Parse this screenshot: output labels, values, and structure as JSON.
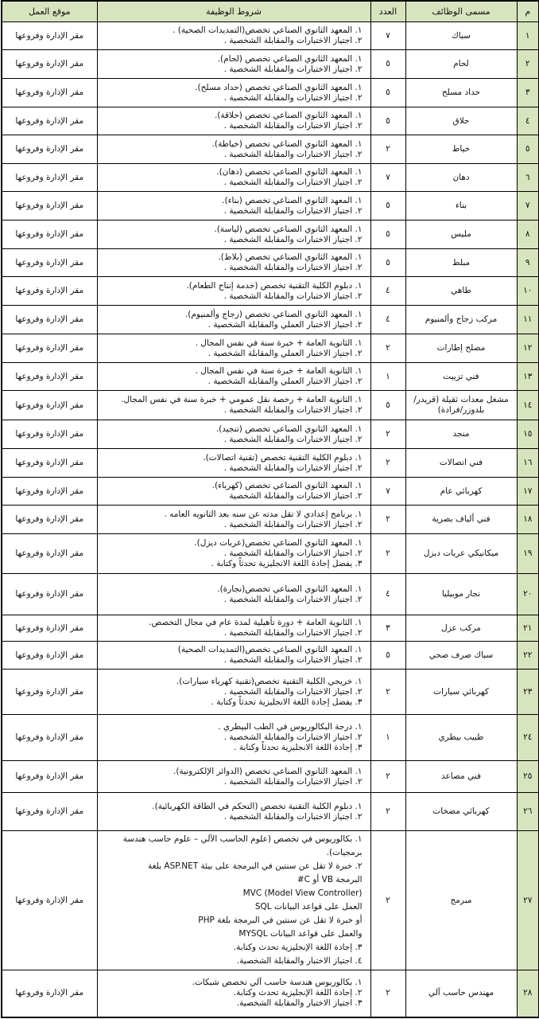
{
  "headers": {
    "num": "م",
    "title": "مسمى الوظائف",
    "count": "العدد",
    "conditions": "شروط الوظيفة",
    "location": "موقع العمل"
  },
  "rows": [
    {
      "num": "١",
      "title": "سباك",
      "count": "٧",
      "conditions": [
        "١. المعهد الثانوي الصناعي تخصص(التمديدات الصحية) .",
        "٢. اجتياز الاختبارات والمقابلة الشخصية ."
      ],
      "location": "مقر الإدارة وفروعها"
    },
    {
      "num": "٢",
      "title": "لحام",
      "count": "٥",
      "conditions": [
        "١. المعهد الثانوي الصناعي تخصص (لحام).",
        "٢. اجتياز الاختبارات والمقابلة الشخصية ."
      ],
      "location": "مقر الإدارة وفروعها"
    },
    {
      "num": "٣",
      "title": "حداد مسلح",
      "count": "٥",
      "conditions": [
        "١. المعهد الثانوي الصناعي تخصص (حداد مسلح).",
        "٢. اجتياز الاختبارات والمقابلة الشخصية ."
      ],
      "location": "مقر الإدارة وفروعها"
    },
    {
      "num": "٤",
      "title": "حلاق",
      "count": "٥",
      "conditions": [
        "١. المعهد الثانوي الصناعي تخصص (حلاقة).",
        "٢. اجتياز الاختبارات والمقابلة الشخصية ."
      ],
      "location": "مقر الإدارة وفروعها"
    },
    {
      "num": "٥",
      "title": "خياط",
      "count": "٢",
      "conditions": [
        "١. المعهد الثانوي الصناعي تخصص (خياطة).",
        "٢. اجتياز الاختبارات والمقابلة الشخصية ."
      ],
      "location": "مقر الإدارة وفروعها"
    },
    {
      "num": "٦",
      "title": "دهان",
      "count": "٧",
      "conditions": [
        "١. المعهد الثانوي الصناعي تخصص (دهان).",
        "٢. اجتياز الاختبارات والمقابلة الشخصية ."
      ],
      "location": "مقر الإدارة وفروعها"
    },
    {
      "num": "٧",
      "title": "بناء",
      "count": "٥",
      "conditions": [
        "١. المعهد الثانوي الصناعي تخصص (بناء).",
        "٢. اجتياز الاختبارات والمقابلة الشخصية ."
      ],
      "location": "مقر الإدارة وفروعها"
    },
    {
      "num": "٨",
      "title": "مليس",
      "count": "٥",
      "conditions": [
        "١. المعهد الثانوي الصناعي تخصص (لياسة).",
        "٢. اجتياز الاختبارات والمقابلة الشخصية ."
      ],
      "location": "مقر الإدارة وفروعها"
    },
    {
      "num": "٩",
      "title": "مبلط",
      "count": "٥",
      "conditions": [
        "١. المعهد الثانوي الصناعي تخصص (بلاط).",
        "٢. اجتياز الاختبارات والمقابلة الشخصية ."
      ],
      "location": "مقر الإدارة وفروعها"
    },
    {
      "num": "١٠",
      "title": "طاهي",
      "count": "٤",
      "conditions": [
        "١. دبلوم الكلية التقنية تخصص (خدمة إنتاج الطعام).",
        "٢. اجتياز الاختبارات والمقابلة الشخصية ."
      ],
      "location": "مقر الإدارة وفروعها"
    },
    {
      "num": "١١",
      "title": "مركب زجاج وألمنيوم",
      "count": "٤",
      "conditions": [
        "١. المعهد الثانوي الصناعي تخصص (زجاج وألمنيوم).",
        "٢. اجتياز الاختبار العملي والمقابلة الشخصية ."
      ],
      "location": "مقر الإدارة وفروعها"
    },
    {
      "num": "١٢",
      "title": "مصلح إطارات",
      "count": "٢",
      "conditions": [
        "١. الثانوية العامة + خبرة سنة في نفس المجال .",
        "٢. اجتياز الاختبار العملي والمقابلة الشخصية ."
      ],
      "location": "مقر الإدارة وفروعها"
    },
    {
      "num": "١٣",
      "title": "فني تزييت",
      "count": "١",
      "conditions": [
        "١. الثانوية العامة + خبرة سنة في نفس المجال .",
        "٢. اجتياز الاختبار العملي والمقابلة الشخصية ."
      ],
      "location": "مقر الإدارة وفروعها"
    },
    {
      "num": "١٤",
      "title": "مشغل معدات ثقيلة (قريدر/بلدوزر/فرادة)",
      "count": "٥",
      "conditions": [
        "١. الثانوية العامة + رخصة نقل عمومي + خبرة سنة في نفس المجال.",
        "٢. اجتياز الاختبارات والمقابلة الشخصية ."
      ],
      "location": "مقر الإدارة وفروعها"
    },
    {
      "num": "١٥",
      "title": "منجد",
      "count": "٢",
      "conditions": [
        "١. المعهد الثانوي الصناعي تخصص (تنجيد).",
        "٢. اجتياز الاختبارات والمقابلة الشخصية ."
      ],
      "location": "مقر الإدارة وفروعها"
    },
    {
      "num": "١٦",
      "title": "فني اتصالات",
      "count": "٢",
      "conditions": [
        "١. دبلوم الكلية التقنية تخصص (تقنية اتصالات).",
        "٢. اجتياز الاختبارات والمقابلة الشخصية ."
      ],
      "location": "مقر الإدارة وفروعها"
    },
    {
      "num": "١٧",
      "title": "كهربائي عام",
      "count": "٧",
      "conditions": [
        "١. المعهد الثانوي الصناعي تخصص (كهرباء).",
        "٢. اجتياز الاختبارات والمقابلة الشخصية"
      ],
      "location": "مقر الإدارة وفروعها"
    },
    {
      "num": "١٨",
      "title": "فني ألياف بصرية",
      "count": "٢",
      "conditions": [
        "١. برنامج إعدادي لا تقل مدته عن سنه بعد الثانويه العامه .",
        "٢. اجتياز الاختبارات والمقابلة الشخصية ."
      ],
      "location": "مقر الإدارة وفروعها"
    },
    {
      "num": "١٩",
      "title": "ميكانيكي عربات ديزل",
      "count": "٢",
      "conditions": [
        "١. المعهد الثانوي الصناعي تخصص(عربات ديزل).",
        "٢. اجتياز الاختبارات والمقابلة الشخصية .",
        "٣. يفضل إجادة اللغة الانجليزية تحدثاً وكتابة ."
      ],
      "location": "مقر الإدارة وفروعها"
    },
    {
      "num": "٢٠",
      "title": "نجار موبيليا",
      "count": "٤",
      "conditions": [
        "١. المعهد الثانوي الصناعي تخصص(نجارة).",
        "٢. اجتياز الاختبارات والمقابلة الشخصية ."
      ],
      "location": "مقر الإدارة وفروعها"
    },
    {
      "num": "٢١",
      "title": "مركب عزل",
      "count": "٣",
      "conditions": [
        "١. الثانوية العامة + دورة تأهيلية لمدة عام في مجال التخصص.",
        "٢. اجتياز الاختبارات والمقابلة الشخصية ."
      ],
      "location": "مقر الإدارة وفروعها"
    },
    {
      "num": "٢٢",
      "title": "سباك صرف صحي",
      "count": "٥",
      "conditions": [
        "١. المعهد الثانوي الصناعي تخصص(التمديدات الصحية)",
        "٢. اجتياز الاختبارات والمقابلة الشخصية ."
      ],
      "location": "مقر الإدارة وفروعها"
    },
    {
      "num": "٢٣",
      "title": "كهربائي سيارات",
      "count": "٢",
      "conditions": [
        "١. خريجي الكلية التقنية تخصص(تقنية كهرباء سيارات).",
        "٢. اجتياز الاختبارات والمقابلة الشخصية .",
        "٣. يفضل إجادة اللغة الانجليزية تحدثاً وكتابة ."
      ],
      "location": "مقر الإدارة وفروعها"
    },
    {
      "num": "٢٤",
      "title": "طبيب بيطري",
      "count": "١",
      "conditions": [
        "١. درجة البكالوريوس في الطب البيطري .",
        "٢. اجتياز الاختبارات والمقابلة الشخصية .",
        "٣. إجادة اللغة الانجليزية تحدثاً وكتابة ."
      ],
      "location": "مقر الإدارة وفروعها"
    },
    {
      "num": "٢٥",
      "title": "فني مصاعد",
      "count": "٢",
      "conditions": [
        "١. المعهد الثانوي الصناعي تخصص (الدوائر الإلكترونية).",
        "٢. اجتياز الاختبارات والمقابلة الشخصية ."
      ],
      "location": "مقر الإدارة وفروعها"
    },
    {
      "num": "٢٦",
      "title": "كهربائي مضخات",
      "count": "٢",
      "conditions": [
        "١. دبلوم الكلية التقنية تخصص (التحكم في الطاقة الكهربائية).",
        "٢. اجتياز الاختبارات والمقابلة الشخصية ."
      ],
      "location": "مقر الإدارة وفروعها"
    },
    {
      "num": "٢٧",
      "title": "مبرمج",
      "count": "٢",
      "conditions": [
        "١. بكالوريوس في تخصص (علوم الحاسب الآلي – علوم حاسب هندسة",
        "برمجيات).",
        "٢. خبرة لا تقل عن سنتين في البرمجة على بيئة ASP.NET بلغة",
        "البرمجة VB أو C#",
        "MVC (Model View Controller)",
        "العمل على قواعد البيانات SQL",
        "أو خبرة لا تقل عن سنتين في البرمجة بلغة PHP",
        "والعمل على قواعد البيانات MYSQL",
        "٣. إجادة اللغة الإنجليزية تحدث وكتابة.",
        "٤. اجتياز الاختبار والمقابلة الشخصية."
      ],
      "location": "مقر الإدارة وفروعها"
    },
    {
      "num": "٢٨",
      "title": "مهندس حاسب آلي",
      "count": "٢",
      "conditions": [
        "١. بكالوريوس هندسة حاسب آلي تخصص شبكات.",
        "٢. إجادة اللغة الإنجليزية تحدث وكتابة.",
        "٣. اجتياز الاختبار والمقابلة الشخصية."
      ],
      "location": "مقر الإدارة وفروعها"
    }
  ]
}
